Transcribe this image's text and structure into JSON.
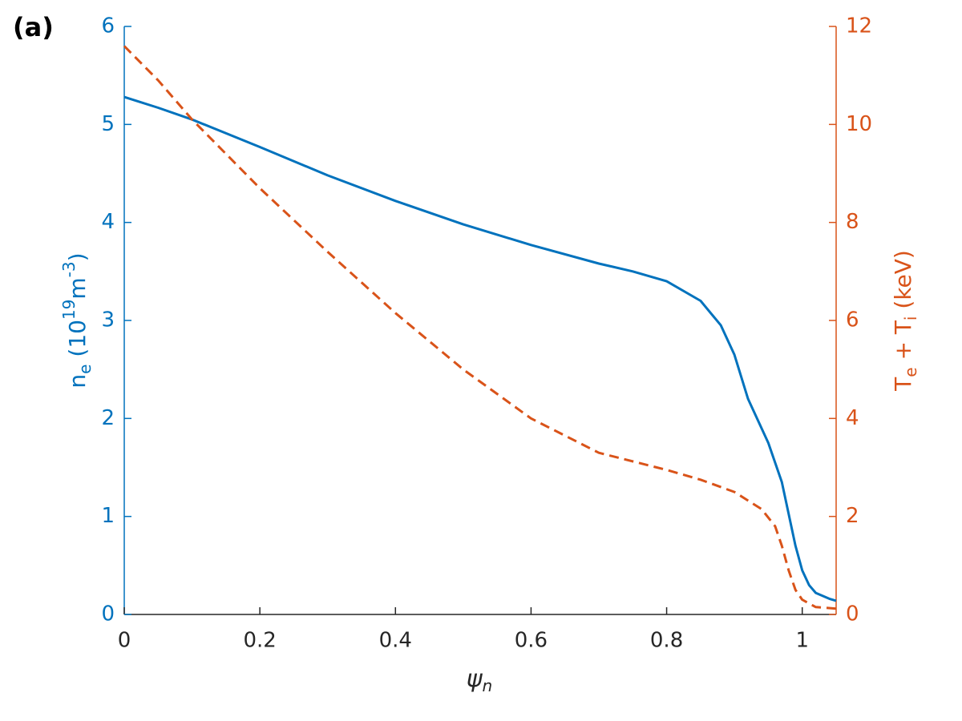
{
  "chart_data": {
    "type": "line",
    "panel_label": "(a)",
    "xlabel": "\\psi_n",
    "ylabel": "n_e (10^{19}m^{-3})",
    "y2label": "T_e + T_i (keV)",
    "xlim": [
      0,
      1.05
    ],
    "xticks": [
      0,
      0.2,
      0.4,
      0.6,
      0.8,
      1
    ],
    "ylim": [
      0,
      6
    ],
    "yticks": [
      0,
      1,
      2,
      3,
      4,
      5,
      6
    ],
    "y2lim": [
      0,
      12
    ],
    "y2ticks": [
      0,
      2,
      4,
      6,
      8,
      10,
      12
    ],
    "ycolor": "#0072bd",
    "y2color": "#d95319",
    "xcolor": "#262626",
    "series": [
      {
        "color": "#0072bd",
        "dash": false,
        "x": [
          0,
          0.05,
          0.1,
          0.2,
          0.3,
          0.4,
          0.5,
          0.6,
          0.7,
          0.75,
          0.8,
          0.85,
          0.88,
          0.9,
          0.92,
          0.95,
          0.97,
          0.99,
          1.0,
          1.01,
          1.02,
          1.04,
          1.05
        ],
        "values": [
          5.28,
          5.17,
          5.05,
          4.77,
          4.48,
          4.22,
          3.98,
          3.77,
          3.58,
          3.5,
          3.4,
          3.2,
          2.95,
          2.65,
          2.2,
          1.75,
          1.35,
          0.7,
          0.45,
          0.3,
          0.22,
          0.16,
          0.14
        ]
      },
      {
        "color": "#d95319",
        "dash": true,
        "axis": "y2",
        "x": [
          0,
          0.05,
          0.1,
          0.2,
          0.3,
          0.4,
          0.5,
          0.6,
          0.7,
          0.8,
          0.85,
          0.9,
          0.94,
          0.96,
          0.97,
          0.98,
          0.99,
          1.0,
          1.02,
          1.05
        ],
        "values": [
          11.6,
          10.9,
          10.1,
          8.7,
          7.4,
          6.15,
          5.0,
          4.0,
          3.3,
          2.95,
          2.75,
          2.5,
          2.15,
          1.8,
          1.4,
          0.9,
          0.5,
          0.3,
          0.15,
          0.12
        ]
      }
    ]
  }
}
